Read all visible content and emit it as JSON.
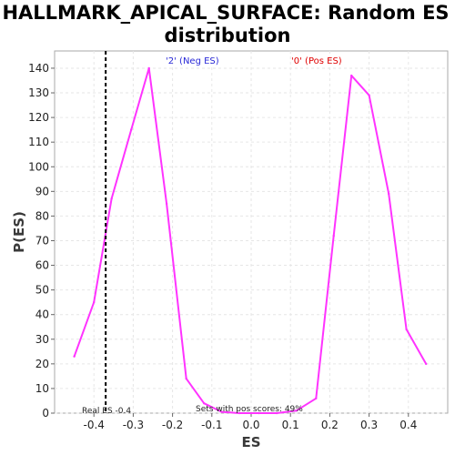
{
  "chart_data": {
    "type": "line",
    "title_lines": [
      "HALLMARK_APICAL_SURFACE: Random ES",
      "distribution"
    ],
    "xlabel": "ES",
    "ylabel": "P(ES)",
    "xlim": [
      -0.5,
      0.5
    ],
    "ylim": [
      0,
      147
    ],
    "xticks": [
      -0.4,
      -0.3,
      -0.2,
      -0.1,
      0.0,
      0.1,
      0.2,
      0.3,
      0.4
    ],
    "xtick_labels": [
      "-0.4",
      "-0.3",
      "-0.2",
      "-0.1",
      "0.0",
      "0.1",
      "0.2",
      "0.3",
      "0.4"
    ],
    "yticks": [
      0,
      10,
      20,
      30,
      40,
      50,
      60,
      70,
      80,
      90,
      100,
      110,
      120,
      130,
      140
    ],
    "ytick_labels": [
      "0",
      "10",
      "20",
      "30",
      "40",
      "50",
      "60",
      "70",
      "80",
      "90",
      "100",
      "110",
      "120",
      "130",
      "140"
    ],
    "grid": true,
    "series": [
      {
        "color": "#ff33ff",
        "x": [
          -0.45,
          -0.4,
          -0.355,
          -0.305,
          -0.26,
          -0.215,
          -0.165,
          -0.12,
          -0.075,
          -0.03,
          0.02,
          0.065,
          0.115,
          0.165,
          0.21,
          0.255,
          0.3,
          0.35,
          0.395,
          0.445
        ],
        "y": [
          23,
          45,
          87,
          115,
          140,
          85,
          14,
          4,
          0.5,
          0,
          0,
          0,
          1,
          6,
          72,
          137,
          129,
          89,
          34,
          20
        ]
      }
    ],
    "vertical_line": {
      "x": -0.37,
      "style": "dashed",
      "color": "#000000"
    },
    "legend": {
      "neg_label": "'2' (Neg ES)",
      "pos_label": "'0' (Pos ES)",
      "neg_color": "#2a2ad8",
      "pos_color": "#e00000"
    },
    "annotations": {
      "real_es": "Real ES -0.4",
      "pos_sets": "Sets with pos scores: 49%"
    }
  }
}
